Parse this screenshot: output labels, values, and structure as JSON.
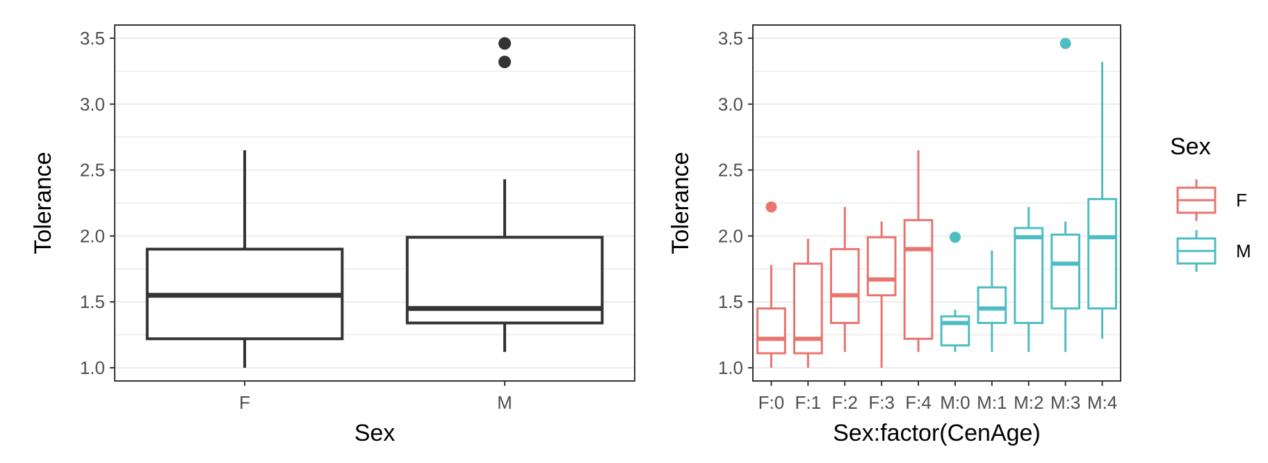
{
  "chart_data": [
    {
      "type": "boxplot",
      "xlabel": "Sex",
      "ylabel": "Tolerance",
      "ylim": [
        0.9,
        3.6
      ],
      "yticks": [
        "1.0",
        "1.5",
        "2.0",
        "2.5",
        "3.0",
        "3.5"
      ],
      "yticks_values": [
        1.0,
        1.5,
        2.0,
        2.5,
        3.0,
        3.5
      ],
      "grid": true,
      "color": "#333333",
      "categories": [
        "F",
        "M"
      ],
      "boxes": [
        {
          "category": "F",
          "min": 1.0,
          "q1": 1.22,
          "median": 1.55,
          "q3": 1.9,
          "max": 2.65,
          "outliers": []
        },
        {
          "category": "M",
          "min": 1.12,
          "q1": 1.34,
          "median": 1.45,
          "q3": 1.99,
          "max": 2.43,
          "outliers": [
            3.32,
            3.46
          ]
        }
      ]
    },
    {
      "type": "boxplot",
      "xlabel": "Sex:factor(CenAge)",
      "ylabel": "Tolerance",
      "ylim": [
        0.9,
        3.6
      ],
      "yticks": [
        "1.0",
        "1.5",
        "2.0",
        "2.5",
        "3.0",
        "3.5"
      ],
      "yticks_values": [
        1.0,
        1.5,
        2.0,
        2.5,
        3.0,
        3.5
      ],
      "grid": true,
      "legend": {
        "title": "Sex",
        "position": "right",
        "entries": [
          {
            "label": "F",
            "color": "#E8756E"
          },
          {
            "label": "M",
            "color": "#4DBDC4"
          }
        ]
      },
      "categories": [
        "F:0",
        "F:1",
        "F:2",
        "F:3",
        "F:4",
        "M:0",
        "M:1",
        "M:2",
        "M:3",
        "M:4"
      ],
      "boxes": [
        {
          "category": "F:0",
          "sex": "F",
          "min": 1.0,
          "q1": 1.11,
          "median": 1.22,
          "q3": 1.45,
          "max": 1.78,
          "outliers": [
            2.22
          ]
        },
        {
          "category": "F:1",
          "sex": "F",
          "min": 1.0,
          "q1": 1.11,
          "median": 1.22,
          "q3": 1.79,
          "max": 1.98,
          "outliers": []
        },
        {
          "category": "F:2",
          "sex": "F",
          "min": 1.12,
          "q1": 1.34,
          "median": 1.55,
          "q3": 1.9,
          "max": 2.22,
          "outliers": []
        },
        {
          "category": "F:3",
          "sex": "F",
          "min": 1.0,
          "q1": 1.55,
          "median": 1.67,
          "q3": 1.99,
          "max": 2.11,
          "outliers": []
        },
        {
          "category": "F:4",
          "sex": "F",
          "min": 1.12,
          "q1": 1.22,
          "median": 1.9,
          "q3": 2.12,
          "max": 2.65,
          "outliers": []
        },
        {
          "category": "M:0",
          "sex": "M",
          "min": 1.12,
          "q1": 1.17,
          "median": 1.34,
          "q3": 1.39,
          "max": 1.44,
          "outliers": [
            1.99
          ]
        },
        {
          "category": "M:1",
          "sex": "M",
          "min": 1.12,
          "q1": 1.34,
          "median": 1.45,
          "q3": 1.61,
          "max": 1.89,
          "outliers": []
        },
        {
          "category": "M:2",
          "sex": "M",
          "min": 1.12,
          "q1": 1.34,
          "median": 1.99,
          "q3": 2.06,
          "max": 2.22,
          "outliers": []
        },
        {
          "category": "M:3",
          "sex": "M",
          "min": 1.12,
          "q1": 1.45,
          "median": 1.79,
          "q3": 2.01,
          "max": 2.11,
          "outliers": [
            3.46
          ]
        },
        {
          "category": "M:4",
          "sex": "M",
          "min": 1.22,
          "q1": 1.45,
          "median": 1.99,
          "q3": 2.28,
          "max": 3.32,
          "outliers": []
        }
      ]
    }
  ]
}
